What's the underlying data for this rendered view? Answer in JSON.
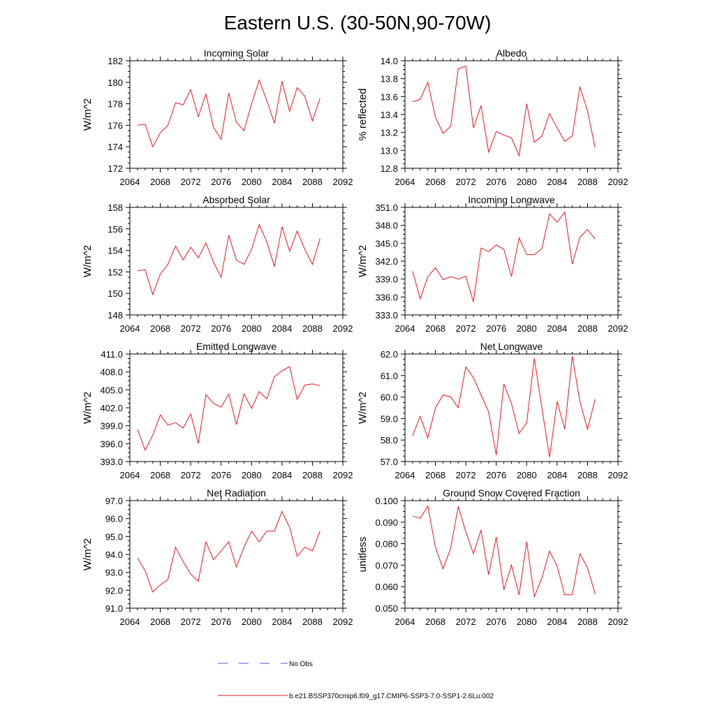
{
  "figure": {
    "title": "Eastern U.S. (30-50N,90-70W)",
    "series_color": "#e8141e",
    "obs_color": "#5555cc",
    "legend": [
      {
        "label": "No Obs",
        "style": "dashed"
      },
      {
        "label": "b.e21.BSSP370cmip6.f09_g17.CMIP6-SSP3-7.0-SSP1-2.6Lu.002",
        "style": "solid"
      }
    ]
  },
  "chart_data": [
    {
      "type": "line",
      "title": "Incoming Solar",
      "ylabel": "W/m^2",
      "xlim": [
        2064,
        2092
      ],
      "xticks": [
        2064,
        2068,
        2072,
        2076,
        2080,
        2084,
        2088,
        2092
      ],
      "ylim": [
        172,
        182
      ],
      "yticks": [
        "172",
        "174",
        "176",
        "178",
        "180",
        "182"
      ],
      "x": [
        2065,
        2066,
        2067,
        2068,
        2069,
        2070,
        2071,
        2072,
        2073,
        2074,
        2075,
        2076,
        2077,
        2078,
        2079,
        2080,
        2081,
        2082,
        2083,
        2084,
        2085,
        2086,
        2087,
        2088,
        2089
      ],
      "y": [
        176.0,
        176.1,
        174.0,
        175.3,
        176.0,
        178.1,
        177.9,
        179.3,
        176.8,
        178.9,
        175.8,
        174.7,
        179.0,
        176.3,
        175.5,
        178.0,
        180.2,
        178.3,
        176.2,
        180.1,
        177.3,
        179.5,
        178.7,
        176.4,
        178.5
      ]
    },
    {
      "type": "line",
      "title": "Albedo",
      "ylabel": "% reflected",
      "xlim": [
        2064,
        2092
      ],
      "xticks": [
        2064,
        2068,
        2072,
        2076,
        2080,
        2084,
        2088,
        2092
      ],
      "ylim": [
        12.8,
        14.0
      ],
      "yticks": [
        "12.8",
        "13.0",
        "13.2",
        "13.4",
        "13.6",
        "13.8",
        "14.0"
      ],
      "x": [
        2065,
        2066,
        2067,
        2068,
        2069,
        2070,
        2071,
        2072,
        2073,
        2074,
        2075,
        2076,
        2077,
        2078,
        2079,
        2080,
        2081,
        2082,
        2083,
        2084,
        2085,
        2086,
        2087,
        2088,
        2089
      ],
      "y": [
        13.54,
        13.57,
        13.76,
        13.37,
        13.19,
        13.27,
        13.91,
        13.94,
        13.25,
        13.5,
        12.98,
        13.21,
        13.17,
        13.14,
        12.94,
        13.52,
        13.09,
        13.16,
        13.41,
        13.25,
        13.1,
        13.16,
        13.71,
        13.44,
        13.03
      ]
    },
    {
      "type": "line",
      "title": "Absorbed Solar",
      "ylabel": "W/m^2",
      "xlim": [
        2064,
        2092
      ],
      "xticks": [
        2064,
        2068,
        2072,
        2076,
        2080,
        2084,
        2088,
        2092
      ],
      "ylim": [
        148,
        158
      ],
      "yticks": [
        "148",
        "150",
        "152",
        "154",
        "156",
        "158"
      ],
      "x": [
        2065,
        2066,
        2067,
        2068,
        2069,
        2070,
        2071,
        2072,
        2073,
        2074,
        2075,
        2076,
        2077,
        2078,
        2079,
        2080,
        2081,
        2082,
        2083,
        2084,
        2085,
        2086,
        2087,
        2088,
        2089
      ],
      "y": [
        152.1,
        152.2,
        149.9,
        151.8,
        152.7,
        154.4,
        153.1,
        154.3,
        153.3,
        154.7,
        152.9,
        151.5,
        155.4,
        153.1,
        152.7,
        154.1,
        156.4,
        154.8,
        152.5,
        156.2,
        153.9,
        155.8,
        154.1,
        152.7,
        155.1
      ]
    },
    {
      "type": "line",
      "title": "Incoming Longwave",
      "ylabel": "W/m^2",
      "xlim": [
        2064,
        2092
      ],
      "xticks": [
        2064,
        2068,
        2072,
        2076,
        2080,
        2084,
        2088,
        2092
      ],
      "ylim": [
        333.0,
        351.0
      ],
      "yticks": [
        "333.0",
        "336.0",
        "339.0",
        "342.0",
        "345.0",
        "348.0",
        "351.0"
      ],
      "x": [
        2065,
        2066,
        2067,
        2068,
        2069,
        2070,
        2071,
        2072,
        2073,
        2074,
        2075,
        2076,
        2077,
        2078,
        2079,
        2080,
        2081,
        2082,
        2083,
        2084,
        2085,
        2086,
        2087,
        2088,
        2089
      ],
      "y": [
        340.3,
        335.7,
        339.4,
        340.9,
        338.9,
        339.4,
        339.0,
        339.5,
        335.2,
        344.2,
        343.6,
        344.7,
        344.0,
        339.4,
        345.9,
        343.1,
        343.1,
        344.1,
        349.9,
        348.5,
        350.2,
        341.5,
        346.0,
        347.3,
        345.7
      ]
    },
    {
      "type": "line",
      "title": "Emitted Longwave",
      "ylabel": "W/m^2",
      "xlim": [
        2064,
        2092
      ],
      "xticks": [
        2064,
        2068,
        2072,
        2076,
        2080,
        2084,
        2088,
        2092
      ],
      "ylim": [
        393.0,
        411.0
      ],
      "yticks": [
        "393.0",
        "396.0",
        "399.0",
        "402.0",
        "405.0",
        "408.0",
        "411.0"
      ],
      "x": [
        2065,
        2066,
        2067,
        2068,
        2069,
        2070,
        2071,
        2072,
        2073,
        2074,
        2075,
        2076,
        2077,
        2078,
        2079,
        2080,
        2081,
        2082,
        2083,
        2084,
        2085,
        2086,
        2087,
        2088,
        2089
      ],
      "y": [
        398.4,
        394.9,
        397.4,
        400.8,
        399.1,
        399.5,
        398.6,
        401.0,
        396.0,
        404.2,
        402.7,
        402.1,
        404.3,
        399.2,
        404.3,
        401.9,
        404.7,
        403.5,
        407.2,
        408.2,
        408.9,
        403.4,
        405.8,
        406.0,
        405.7
      ]
    },
    {
      "type": "line",
      "title": "Net Longwave",
      "ylabel": "W/m^2",
      "xlim": [
        2064,
        2092
      ],
      "xticks": [
        2064,
        2068,
        2072,
        2076,
        2080,
        2084,
        2088,
        2092
      ],
      "ylim": [
        57.0,
        62.0
      ],
      "yticks": [
        "57.0",
        "58.0",
        "59.0",
        "60.0",
        "61.0",
        "62.0"
      ],
      "x": [
        2065,
        2066,
        2067,
        2068,
        2069,
        2070,
        2071,
        2072,
        2073,
        2074,
        2075,
        2076,
        2077,
        2078,
        2079,
        2080,
        2081,
        2082,
        2083,
        2084,
        2085,
        2086,
        2087,
        2088,
        2089
      ],
      "y": [
        58.2,
        59.1,
        58.1,
        59.5,
        60.1,
        60.0,
        59.5,
        61.4,
        60.9,
        60.1,
        59.3,
        57.3,
        60.6,
        59.7,
        58.3,
        58.8,
        61.8,
        59.5,
        57.2,
        59.8,
        58.5,
        61.9,
        59.8,
        58.5,
        59.9
      ]
    },
    {
      "type": "line",
      "title": "Net Radiation",
      "ylabel": "W/m^2",
      "xlim": [
        2064,
        2092
      ],
      "xticks": [
        2064,
        2068,
        2072,
        2076,
        2080,
        2084,
        2088,
        2092
      ],
      "ylim": [
        91.0,
        97.0
      ],
      "yticks": [
        "91.0",
        "92.0",
        "93.0",
        "94.0",
        "95.0",
        "96.0",
        "97.0"
      ],
      "x": [
        2065,
        2066,
        2067,
        2068,
        2069,
        2070,
        2071,
        2072,
        2073,
        2074,
        2075,
        2076,
        2077,
        2078,
        2079,
        2080,
        2081,
        2082,
        2083,
        2084,
        2085,
        2086,
        2087,
        2088,
        2089
      ],
      "y": [
        93.8,
        93.1,
        91.9,
        92.3,
        92.6,
        94.4,
        93.6,
        92.9,
        92.5,
        94.7,
        93.7,
        94.2,
        94.7,
        93.3,
        94.4,
        95.3,
        94.7,
        95.3,
        95.3,
        96.4,
        95.5,
        93.9,
        94.4,
        94.2,
        95.3
      ]
    },
    {
      "type": "line",
      "title": "Ground Snow Covered Fraction",
      "ylabel": "unitless",
      "xlim": [
        2064,
        2092
      ],
      "xticks": [
        2064,
        2068,
        2072,
        2076,
        2080,
        2084,
        2088,
        2092
      ],
      "ylim": [
        0.05,
        0.1
      ],
      "yticks": [
        "0.050",
        "0.060",
        "0.070",
        "0.080",
        "0.090",
        "0.100"
      ],
      "x": [
        2065,
        2066,
        2067,
        2068,
        2069,
        2070,
        2071,
        2072,
        2073,
        2074,
        2075,
        2076,
        2077,
        2078,
        2079,
        2080,
        2081,
        2082,
        2083,
        2084,
        2085,
        2086,
        2087,
        2088,
        2089
      ],
      "y": [
        0.0928,
        0.0918,
        0.0975,
        0.0783,
        0.0683,
        0.0778,
        0.0973,
        0.0855,
        0.0753,
        0.0863,
        0.0656,
        0.0831,
        0.0586,
        0.0701,
        0.0561,
        0.0809,
        0.0553,
        0.0641,
        0.0766,
        0.0695,
        0.0562,
        0.0563,
        0.0753,
        0.0688,
        0.0566
      ]
    }
  ]
}
